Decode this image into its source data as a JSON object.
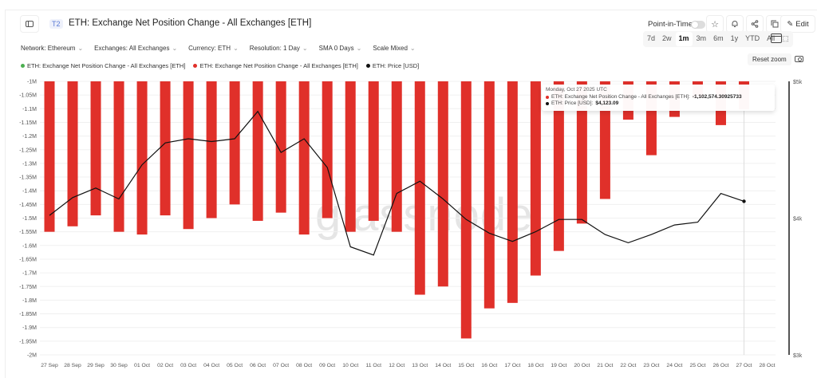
{
  "header": {
    "tier_badge": "T2",
    "title": "ETH: Exchange Net Position Change - All Exchanges [ETH]",
    "point_in_time_label": "Point-in-Time",
    "point_in_time_enabled": false,
    "edit_label": "Edit",
    "icons": [
      "sidebar-toggle-icon",
      "star-icon",
      "bell-icon",
      "share-icon",
      "copy-icon",
      "pencil-icon"
    ]
  },
  "filters": [
    {
      "label": "Network: Ethereum"
    },
    {
      "label": "Exchanges: All Exchanges"
    },
    {
      "label": "Currency: ETH"
    },
    {
      "label": "Resolution: 1 Day"
    },
    {
      "label": "SMA 0 Days"
    },
    {
      "label": "Scale Mixed"
    }
  ],
  "ranges": [
    {
      "label": "7d",
      "active": false
    },
    {
      "label": "2w",
      "active": false
    },
    {
      "label": "1m",
      "active": true
    },
    {
      "label": "3m",
      "active": false
    },
    {
      "label": "6m",
      "active": false
    },
    {
      "label": "1y",
      "active": false
    },
    {
      "label": "YTD",
      "active": false
    },
    {
      "label": "All",
      "active": false
    }
  ],
  "reset_zoom_label": "Reset zoom",
  "legend": [
    {
      "label": "ETH: Exchange Net Position Change - All Exchanges [ETH]",
      "color": "#4caf50"
    },
    {
      "label": "ETH: Exchange Net Position Change - All Exchanges [ETH]",
      "color": "#e0302a"
    },
    {
      "label": "ETH: Price [USD]",
      "color": "#111111"
    }
  ],
  "tooltip": {
    "date": "Monday, Oct 27 2025 UTC",
    "rows": [
      {
        "label": "ETH: Exchange Net Position Change - All Exchanges [ETH]:",
        "value": "-1,102,574.30925733",
        "color": "#e0302a"
      },
      {
        "label": "ETH: Price [USD]:",
        "value": "$4,123.09",
        "color": "#111111"
      }
    ]
  },
  "watermark": "glassnode",
  "chart_data": {
    "type": "bar",
    "title": "ETH: Exchange Net Position Change - All Exchanges [ETH]",
    "categories": [
      "27 Sep",
      "28 Sep",
      "29 Sep",
      "30 Sep",
      "01 Oct",
      "02 Oct",
      "03 Oct",
      "04 Oct",
      "05 Oct",
      "06 Oct",
      "07 Oct",
      "08 Oct",
      "09 Oct",
      "10 Oct",
      "11 Oct",
      "12 Oct",
      "13 Oct",
      "14 Oct",
      "15 Oct",
      "16 Oct",
      "17 Oct",
      "18 Oct",
      "19 Oct",
      "20 Oct",
      "21 Oct",
      "22 Oct",
      "23 Oct",
      "24 Oct",
      "25 Oct",
      "26 Oct",
      "27 Oct",
      "28 Oct"
    ],
    "series": [
      {
        "name": "ETH: Exchange Net Position Change - All Exchanges [ETH]",
        "type": "bar",
        "axis": "left",
        "color": "#e0302a",
        "values": [
          -1550000,
          -1530000,
          -1490000,
          -1550000,
          -1560000,
          -1490000,
          -1540000,
          -1500000,
          -1450000,
          -1510000,
          -1480000,
          -1560000,
          -1500000,
          -1550000,
          -1510000,
          -1550000,
          -1780000,
          -1750000,
          -1940000,
          -1830000,
          -1810000,
          -1710000,
          -1620000,
          -1520000,
          -1430000,
          -1140000,
          -1270000,
          -1130000,
          -1060000,
          -1160000,
          -1102574.31,
          null
        ]
      },
      {
        "name": "ETH: Price [USD]",
        "type": "line",
        "axis": "right",
        "color": "#111111",
        "values": [
          4020,
          4150,
          4220,
          4140,
          4390,
          4550,
          4580,
          4560,
          4580,
          4780,
          4480,
          4580,
          4370,
          3790,
          3730,
          4180,
          4270,
          4140,
          3990,
          3890,
          3830,
          3900,
          3990,
          3990,
          3880,
          3820,
          3880,
          3950,
          3970,
          4180,
          4123.09,
          null
        ]
      }
    ],
    "left_axis": {
      "ticks": [
        "-1M",
        "-1.05M",
        "-1.1M",
        "-1.15M",
        "-1.2M",
        "-1.25M",
        "-1.3M",
        "-1.35M",
        "-1.4M",
        "-1.45M",
        "-1.5M",
        "-1.55M",
        "-1.6M",
        "-1.65M",
        "-1.7M",
        "-1.75M",
        "-1.8M",
        "-1.85M",
        "-1.9M",
        "-1.95M",
        "-2M"
      ],
      "range": [
        -2000000,
        -1000000
      ]
    },
    "right_axis": {
      "ticks": [
        "$5k",
        "$4k",
        "$3k"
      ],
      "tick_values": [
        5000,
        4000,
        3000
      ],
      "range": [
        3000,
        5000
      ]
    },
    "xlabel": "",
    "ylabel": "",
    "grid": true,
    "legend_position": "top-left",
    "highlighted_category": "27 Oct"
  }
}
